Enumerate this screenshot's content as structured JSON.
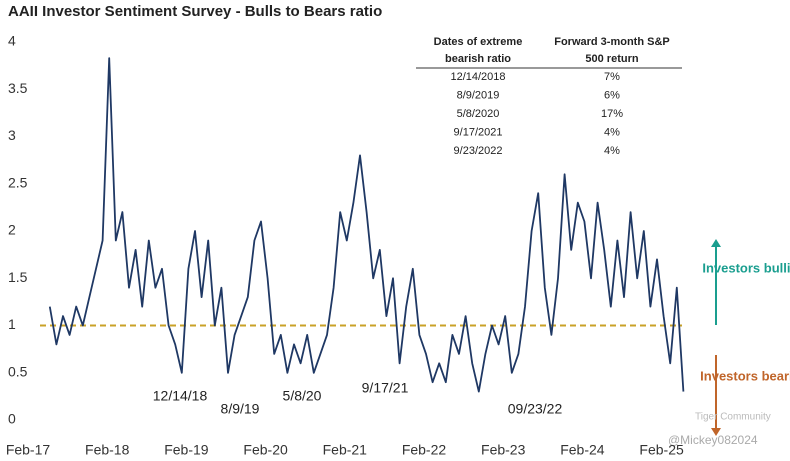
{
  "chart_data": {
    "type": "line",
    "title": "AAII Investor Sentiment Survey - Bulls to Bears ratio",
    "categories": [
      "Feb-17",
      null,
      null,
      null,
      null,
      null,
      null,
      null,
      null,
      null,
      null,
      null,
      "Feb-18",
      null,
      null,
      null,
      null,
      null,
      null,
      null,
      null,
      null,
      null,
      null,
      "Feb-19",
      null,
      null,
      null,
      null,
      null,
      null,
      null,
      null,
      null,
      null,
      null,
      "Feb-20",
      null,
      null,
      null,
      null,
      null,
      null,
      null,
      null,
      null,
      null,
      null,
      "Feb-21",
      null,
      null,
      null,
      null,
      null,
      null,
      null,
      null,
      null,
      null,
      null,
      "Feb-22",
      null,
      null,
      null,
      null,
      null,
      null,
      null,
      null,
      null,
      null,
      null,
      "Feb-23",
      null,
      null,
      null,
      null,
      null,
      null,
      null,
      null,
      null,
      null,
      null,
      "Feb-24",
      null,
      null,
      null,
      null,
      null,
      null,
      null,
      null,
      null,
      null,
      null,
      "Feb-25",
      null,
      null,
      null
    ],
    "series": [
      {
        "name": "Bulls to Bears ratio",
        "color": "#1f3864",
        "values": [
          null,
          null,
          null,
          1.2,
          0.8,
          1.1,
          0.9,
          1.2,
          1.0,
          1.3,
          1.6,
          1.9,
          3.83,
          1.9,
          2.2,
          1.4,
          1.8,
          1.2,
          1.9,
          1.4,
          1.6,
          1.0,
          0.8,
          0.5,
          1.6,
          2.0,
          1.3,
          1.9,
          1.0,
          1.4,
          0.5,
          0.9,
          1.1,
          1.3,
          1.9,
          2.1,
          1.5,
          0.7,
          0.9,
          0.5,
          0.8,
          0.6,
          0.9,
          0.5,
          0.7,
          0.9,
          1.4,
          2.2,
          1.9,
          2.3,
          2.8,
          2.2,
          1.5,
          1.8,
          1.1,
          1.5,
          0.6,
          1.2,
          1.6,
          0.9,
          0.7,
          0.4,
          0.6,
          0.4,
          0.9,
          0.7,
          1.1,
          0.6,
          0.3,
          0.7,
          1.0,
          0.8,
          1.1,
          0.5,
          0.7,
          1.2,
          2.0,
          2.4,
          1.4,
          0.9,
          1.5,
          2.6,
          1.8,
          2.3,
          2.1,
          1.5,
          2.3,
          1.8,
          1.2,
          1.9,
          1.3,
          2.2,
          1.5,
          2.0,
          1.2,
          1.7,
          1.1,
          0.6,
          1.4,
          0.3
        ]
      }
    ],
    "reference_line": {
      "value": 1,
      "color": "#c9a227"
    },
    "ylim": [
      0,
      4
    ],
    "yticks": [
      0,
      0.5,
      1,
      1.5,
      2,
      2.5,
      3,
      3.5,
      4
    ],
    "annotations": [
      "12/14/18",
      "8/9/19",
      "5/8/20",
      "9/17/21",
      "09/23/22"
    ],
    "table": {
      "header": [
        "Dates of extreme bearish ratio",
        "Forward 3-month S&P 500 return"
      ],
      "rows": [
        [
          "12/14/2018",
          "7%"
        ],
        [
          "8/9/2019",
          "6%"
        ],
        [
          "5/8/2020",
          "17%"
        ],
        [
          "9/17/2021",
          "4%"
        ],
        [
          "9/23/2022",
          "4%"
        ]
      ]
    },
    "side_labels": [
      "Investors bullish",
      "Investors bearish"
    ],
    "watermarks": [
      "Tiger Community",
      "@Mickey082024"
    ]
  }
}
